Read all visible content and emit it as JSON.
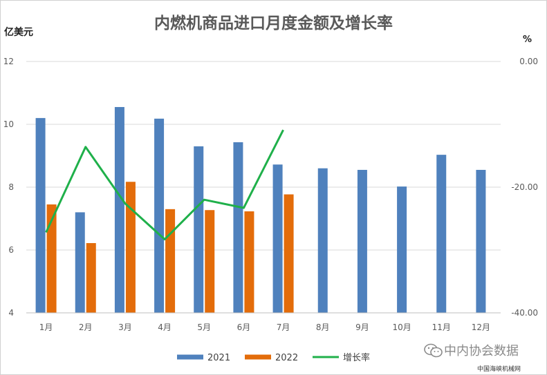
{
  "chart_data": {
    "type": "bar",
    "title": "内燃机商品进口月度金额及增长率",
    "ylabel": "亿美元",
    "y2label": "%",
    "categories": [
      "1月",
      "2月",
      "3月",
      "4月",
      "5月",
      "6月",
      "7月",
      "8月",
      "9月",
      "10月",
      "11月",
      "12月"
    ],
    "ylim": [
      4,
      12
    ],
    "yticks": [
      "4",
      "6",
      "8",
      "10",
      "12"
    ],
    "y2lim": [
      -40,
      0
    ],
    "y2ticks": [
      "-40.00",
      "-20.00",
      "0.00"
    ],
    "series": [
      {
        "name": "2021",
        "type": "bar",
        "axis": "left",
        "color": "#4f81bd",
        "values": [
          10.2,
          7.2,
          10.55,
          10.18,
          9.3,
          9.43,
          8.72,
          8.6,
          8.55,
          8.02,
          9.03,
          8.55
        ]
      },
      {
        "name": "2022",
        "type": "bar",
        "axis": "left",
        "color": "#e36c0a",
        "values": [
          7.45,
          6.22,
          8.17,
          7.3,
          7.27,
          7.23,
          7.77,
          null,
          null,
          null,
          null,
          null
        ]
      },
      {
        "name": "增长率",
        "type": "line",
        "axis": "right",
        "color": "#1fb04a",
        "values": [
          -27.2,
          -13.6,
          -22.6,
          -28.3,
          -22.0,
          -23.3,
          -10.9,
          null,
          null,
          null,
          null,
          null
        ]
      }
    ],
    "legend": "bottom",
    "grid": true
  },
  "watermark": "中内协会数据",
  "footer": "中国海峡机械网"
}
